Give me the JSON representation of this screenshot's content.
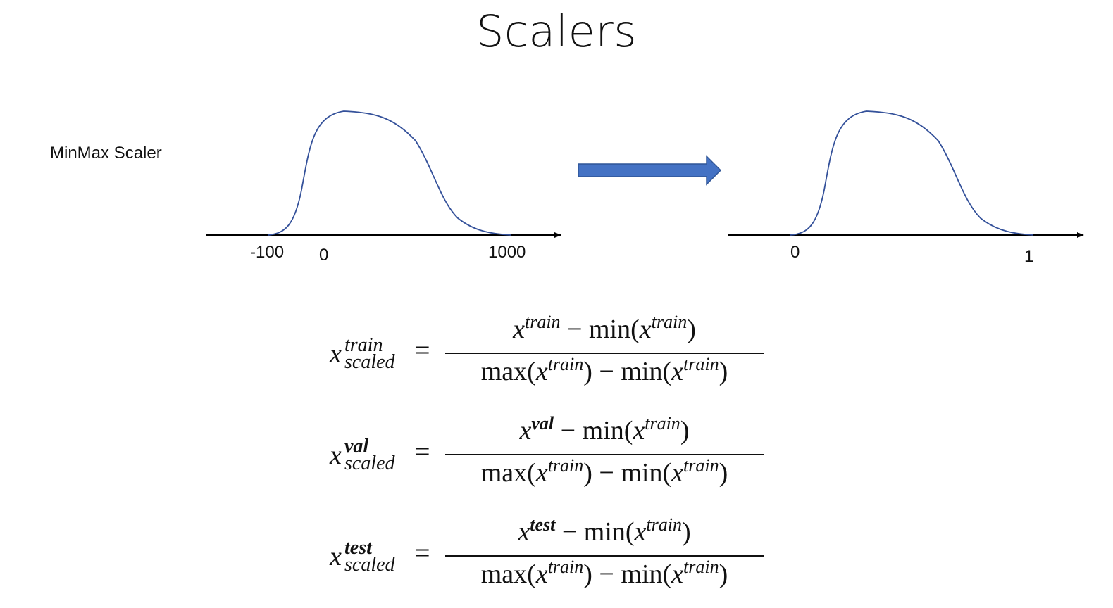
{
  "title": "Scalers",
  "row_label": "MinMax Scaler",
  "left_axis": {
    "ticks": [
      "-100",
      "0",
      "1000"
    ]
  },
  "right_axis": {
    "ticks": [
      "0",
      "1"
    ]
  },
  "colors": {
    "curve": "#34519a",
    "arrow_fill": "#4472c4",
    "arrow_stroke": "#2f5597",
    "axis": "#000000"
  },
  "equations": [
    {
      "lhs_var": "x",
      "lhs_sup": "train",
      "lhs_sup_bold": false,
      "lhs_sub": "scaled",
      "equals": "=",
      "num_var": "x",
      "num_sup": "train",
      "num_sup_bold": false,
      "num_op": "− min(",
      "num_arg_var": "x",
      "num_arg_sup": "train",
      "num_close": ")",
      "den_open": "max(",
      "den_var": "x",
      "den_sup": "train",
      "den_mid": ") − min(",
      "den_var2": "x",
      "den_sup2": "train",
      "den_close": ")"
    },
    {
      "lhs_var": "x",
      "lhs_sup": "val",
      "lhs_sup_bold": true,
      "lhs_sub": "scaled",
      "equals": "=",
      "num_var": "x",
      "num_sup": "val",
      "num_sup_bold": true,
      "num_op": "− min(",
      "num_arg_var": "x",
      "num_arg_sup": "train",
      "num_close": ")",
      "den_open": "max(",
      "den_var": "x",
      "den_sup": "train",
      "den_mid": ") − min(",
      "den_var2": "x",
      "den_sup2": "train",
      "den_close": ")"
    },
    {
      "lhs_var": "x",
      "lhs_sup": "test",
      "lhs_sup_bold": true,
      "lhs_sub": "scaled",
      "equals": "=",
      "num_var": "x",
      "num_sup": "test",
      "num_sup_bold": true,
      "num_op": "− min(",
      "num_arg_var": "x",
      "num_arg_sup": "train",
      "num_close": ")",
      "den_open": "max(",
      "den_var": "x",
      "den_sup": "train",
      "den_mid": ") − min(",
      "den_var2": "x",
      "den_sup2": "train",
      "den_close": ")"
    }
  ]
}
